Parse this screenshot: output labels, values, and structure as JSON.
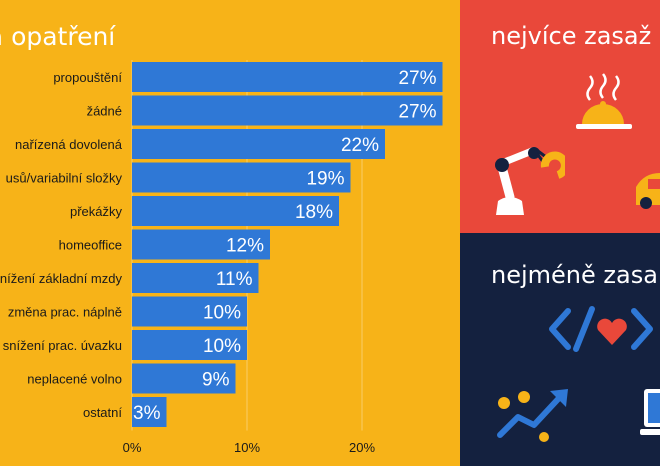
{
  "left_panel": {
    "title": "tá opatření"
  },
  "chart_data": {
    "type": "bar",
    "orientation": "horizontal",
    "categories": [
      "propouštění",
      "žádné",
      "nařízená dovolená",
      "usů/variabilní složky",
      "překážky",
      "homeoffice",
      "nížení základní mzdy",
      "změna prac. náplně",
      "snížení prac. úvazku",
      "neplacené volno",
      "ostatní"
    ],
    "values": [
      27,
      27,
      22,
      19,
      18,
      12,
      11,
      10,
      10,
      9,
      3
    ],
    "value_labels": [
      "27%",
      "27%",
      "22%",
      "19%",
      "18%",
      "12%",
      "11%",
      "10%",
      "10%",
      "9%",
      "3%"
    ],
    "x_ticks": [
      0,
      10,
      20
    ],
    "x_tick_labels": [
      "0%",
      "10%",
      "20%"
    ],
    "xlim": [
      0,
      27
    ],
    "bar_color": "#2F78D6",
    "label_color": "#ffffff",
    "grid": true
  },
  "right_top": {
    "heading": "nejvíce zasaž",
    "background": "#E9483A"
  },
  "right_bottom": {
    "heading": "nejméně zasa",
    "background": "#14213F"
  },
  "icons": {
    "top": [
      "food-cloche-icon",
      "robot-arm-icon",
      "car-icon"
    ],
    "bottom": [
      "code-heart-icon",
      "growth-chart-icon",
      "laptop-icon"
    ]
  },
  "colors": {
    "background": "#F7B318",
    "bar": "#2F78D6",
    "accent_yellow": "#F7B318"
  }
}
